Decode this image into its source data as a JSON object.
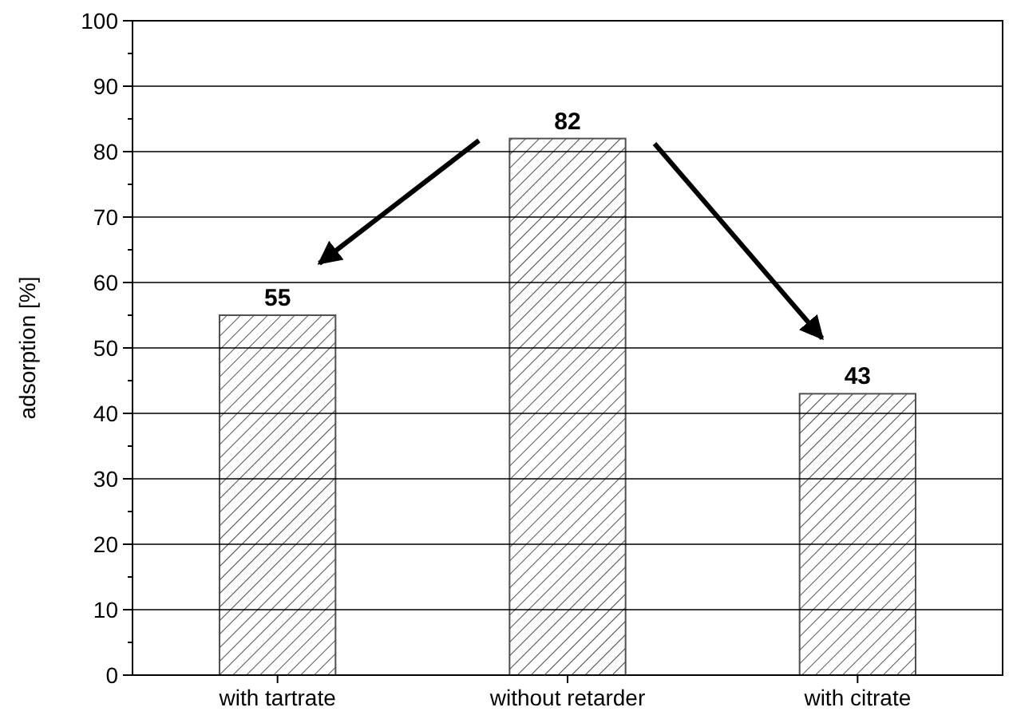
{
  "chart_data": {
    "type": "bar",
    "ylabel": "adsorption [%]",
    "categories": [
      "with tartrate",
      "without retarder",
      "with citrate"
    ],
    "values": [
      55,
      82,
      43
    ],
    "color": "#505050",
    "data_labels": true,
    "grid": "y",
    "ylim": [
      0,
      100
    ],
    "yticks": [
      0,
      {
        "value": 5,
        "label": null
      },
      10,
      {
        "value": 15,
        "label": null
      },
      20,
      {
        "value": 25,
        "label": null
      },
      30,
      {
        "value": 35,
        "label": null
      },
      40,
      {
        "value": 45,
        "label": null
      },
      50,
      {
        "value": 55,
        "label": null
      },
      60,
      {
        "value": 65,
        "label": null
      },
      70,
      {
        "value": 75,
        "label": null
      },
      80,
      {
        "value": 85,
        "label": null
      },
      90,
      {
        "value": 95,
        "label": null
      },
      100
    ]
  }
}
